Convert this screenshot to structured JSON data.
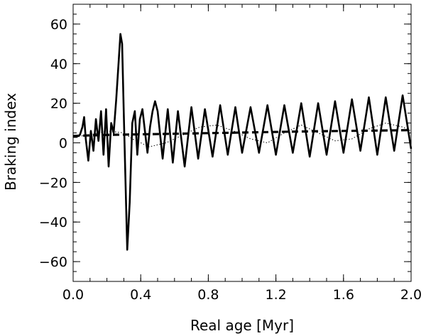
{
  "chart_data": {
    "type": "line",
    "title": "",
    "xlabel": "Real age [Myr]",
    "ylabel": "Braking index",
    "xlim": [
      0.0,
      2.0
    ],
    "ylim": [
      -70,
      70
    ],
    "grid": false,
    "legend": "none",
    "x_ticks": [
      0.0,
      0.4,
      0.8,
      1.2,
      1.6,
      2.0
    ],
    "x_tick_labels": [
      "0.0",
      "0.4",
      "0.8",
      "1.2",
      "1.6",
      "2.0"
    ],
    "y_ticks": [
      -60,
      -40,
      -20,
      0,
      20,
      40,
      60
    ],
    "y_tick_labels": [
      "−60",
      "−40",
      "−20",
      "0",
      "20",
      "40",
      "60"
    ],
    "series": [
      {
        "style": "solid-thick",
        "color": "#000000",
        "x": [
          0.0,
          0.02,
          0.04,
          0.055,
          0.065,
          0.075,
          0.09,
          0.105,
          0.12,
          0.135,
          0.15,
          0.165,
          0.18,
          0.195,
          0.21,
          0.225,
          0.24,
          0.255,
          0.27,
          0.28,
          0.29,
          0.3,
          0.31,
          0.32,
          0.335,
          0.35,
          0.365,
          0.38,
          0.395,
          0.41,
          0.425,
          0.44,
          0.455,
          0.47,
          0.485,
          0.5,
          0.53,
          0.56,
          0.59,
          0.62,
          0.66,
          0.7,
          0.74,
          0.78,
          0.825,
          0.87,
          0.915,
          0.96,
          1.0,
          1.05,
          1.1,
          1.15,
          1.2,
          1.25,
          1.3,
          1.35,
          1.4,
          1.45,
          1.5,
          1.55,
          1.6,
          1.65,
          1.7,
          1.75,
          1.8,
          1.85,
          1.9,
          1.95,
          2.0
        ],
        "y": [
          3,
          3,
          4,
          8,
          13,
          2,
          -9,
          6,
          -4,
          12,
          1,
          16,
          -6,
          17,
          -12,
          10,
          5,
          22,
          42,
          55,
          50,
          14,
          -20,
          -54,
          -30,
          10,
          16,
          -6,
          12,
          17,
          6,
          -5,
          8,
          16,
          21,
          16,
          -8,
          17,
          -10,
          16,
          -12,
          18,
          -8,
          17,
          -7,
          19,
          -6,
          18,
          -5,
          18,
          -5,
          19,
          -6,
          19,
          -5,
          20,
          -7,
          20,
          -6,
          21,
          -5,
          22,
          -4,
          23,
          -6,
          23,
          -4,
          24,
          -3
        ]
      },
      {
        "style": "dotted",
        "color": "#000000",
        "x": [
          0.0,
          0.1,
          0.2,
          0.3,
          0.35,
          0.45,
          0.55,
          0.65,
          0.75,
          0.85,
          0.95,
          1.05,
          1.15,
          1.25,
          1.35,
          1.45,
          1.55,
          1.65,
          1.75,
          1.85,
          1.95,
          2.0
        ],
        "y": [
          3,
          4,
          6,
          5,
          2,
          -2,
          0,
          4,
          8,
          9,
          6,
          2,
          0,
          5,
          9,
          5,
          1,
          2,
          7,
          10,
          8,
          6
        ]
      },
      {
        "style": "dashed-thick",
        "color": "#000000",
        "x": [
          0.0,
          0.2,
          0.4,
          0.6,
          0.8,
          1.0,
          1.2,
          1.4,
          1.6,
          1.8,
          2.0
        ],
        "y": [
          3.5,
          4.0,
          4.3,
          4.6,
          4.9,
          5.2,
          5.5,
          5.8,
          6.0,
          6.2,
          6.4
        ]
      }
    ]
  }
}
